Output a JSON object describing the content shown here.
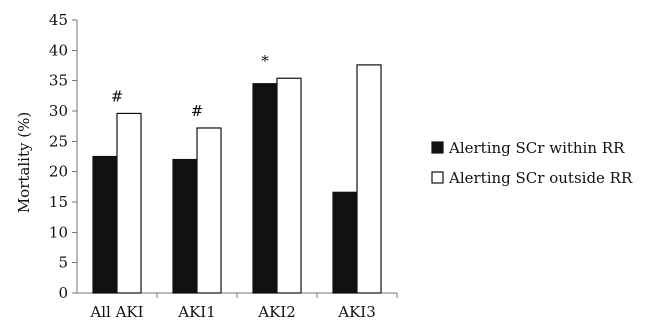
{
  "chart_data": {
    "type": "bar",
    "title": "",
    "xlabel": "",
    "ylabel": "Mortality (%)",
    "ylim": [
      0,
      45
    ],
    "yticks": [
      0,
      5,
      10,
      15,
      20,
      25,
      30,
      35,
      40,
      45
    ],
    "categories": [
      "All AKI",
      "AKI1",
      "AKI2",
      "AKI3"
    ],
    "series": [
      {
        "name": "Alerting SCr within RR",
        "color": "#111111",
        "values": [
          22.5,
          22.0,
          34.5,
          16.6
        ]
      },
      {
        "name": "Alerting SCr outside RR",
        "color": "#ffffff",
        "values": [
          29.6,
          27.2,
          35.4,
          37.6
        ]
      }
    ],
    "annotations": [
      {
        "category": "All AKI",
        "text": "#"
      },
      {
        "category": "AKI1",
        "text": "#"
      },
      {
        "category": "AKI2",
        "text": "*"
      }
    ],
    "legend": {
      "position": "right"
    },
    "grid": false
  }
}
